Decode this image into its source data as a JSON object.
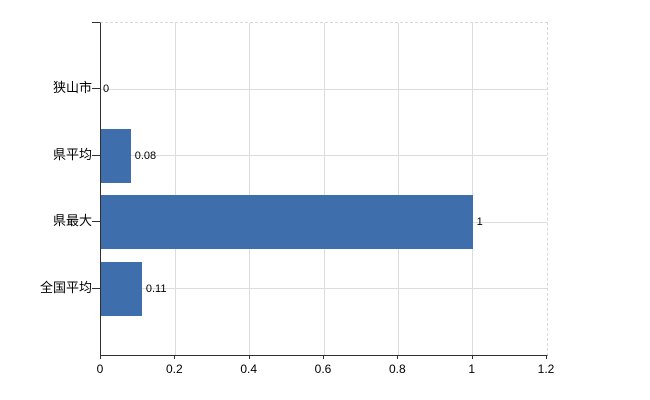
{
  "chart_data": {
    "type": "bar",
    "orientation": "horizontal",
    "title": "",
    "xlabel": "",
    "ylabel": "",
    "categories": [
      "狭山市",
      "県平均",
      "県最大",
      "全国平均"
    ],
    "values": [
      0,
      0.08,
      1,
      0.11
    ],
    "value_labels": [
      "0",
      "0.08",
      "1",
      "0.11"
    ],
    "xlim": [
      0,
      1.2
    ],
    "xticks": [
      0,
      0.2,
      0.4,
      0.6,
      0.8,
      1,
      1.2
    ],
    "xtick_labels": [
      "0",
      "0.2",
      "0.4",
      "0.6",
      "0.8",
      "1",
      "1.2"
    ],
    "grid": true,
    "legend": false,
    "colors": {
      "bar": "#3F6EAD",
      "gridline": "#DCDCDC",
      "plot_border_dashed": "#D9D9D9",
      "axis": "#303030",
      "text": "#000000",
      "background": "#FFFFFF"
    }
  }
}
